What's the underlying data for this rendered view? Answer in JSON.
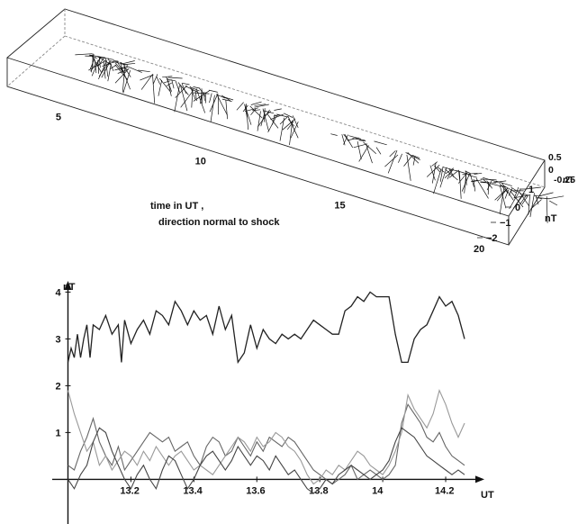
{
  "chart_data": [
    {
      "type": "line",
      "subtype": "3d-vector-field",
      "annotation_lines": [
        "time in UT ,",
        "direction normal to shock"
      ],
      "x_ticks": [
        "5",
        "10",
        "15",
        "20"
      ],
      "y_ticks": [
        "1",
        "0",
        "−1",
        "−2"
      ],
      "y_label": "nT",
      "z_ticks": [
        "0.5",
        "0",
        "-0.25"
      ],
      "z_label": "nT",
      "xlim": [
        3,
        21
      ],
      "ylim": [
        -2,
        1.5
      ],
      "zlim": [
        -0.5,
        0.5
      ],
      "vector_clusters": [
        {
          "t_start": 4.0,
          "t_end": 5.5,
          "density": "very high"
        },
        {
          "t_start": 6.2,
          "t_end": 9.0,
          "density": "high"
        },
        {
          "t_start": 9.5,
          "t_end": 11.5,
          "density": "high"
        },
        {
          "t_start": 13.0,
          "t_end": 14.3,
          "density": "medium"
        },
        {
          "t_start": 15.0,
          "t_end": 15.8,
          "density": "medium"
        },
        {
          "t_start": 16.3,
          "t_end": 20.5,
          "density": "high"
        }
      ]
    },
    {
      "type": "line",
      "y_unit_label": "nT",
      "x_unit_label": "UT",
      "x_ticks": [
        "13.2",
        "13.4",
        "13.6",
        "13.8",
        "14",
        "14.2"
      ],
      "y_ticks": [
        "1",
        "2",
        "3",
        "4"
      ],
      "xlim": [
        12.95,
        14.3
      ],
      "ylim": [
        -0.3,
        4.2
      ],
      "series": [
        {
          "color": "#222222",
          "x": [
            13.0,
            13.01,
            13.02,
            13.03,
            13.04,
            13.05,
            13.06,
            13.07,
            13.08,
            13.1,
            13.12,
            13.14,
            13.16,
            13.17,
            13.18,
            13.2,
            13.22,
            13.24,
            13.26,
            13.28,
            13.3,
            13.32,
            13.34,
            13.36,
            13.38,
            13.4,
            13.42,
            13.44,
            13.46,
            13.48,
            13.5,
            13.52,
            13.54,
            13.56,
            13.58,
            13.6,
            13.62,
            13.64,
            13.66,
            13.68,
            13.7,
            13.72,
            13.74,
            13.76,
            13.78,
            13.8,
            13.82,
            13.84,
            13.86,
            13.88,
            13.9,
            13.92,
            13.94,
            13.96,
            13.98,
            14.0,
            14.02,
            14.04,
            14.06,
            14.08,
            14.1,
            14.12,
            14.14,
            14.16,
            14.18,
            14.2,
            14.22,
            14.24,
            14.26
          ],
          "values": [
            2.5,
            2.8,
            2.6,
            3.1,
            2.6,
            3.0,
            3.3,
            2.6,
            3.3,
            3.2,
            3.5,
            3.1,
            3.3,
            2.5,
            3.4,
            2.9,
            3.2,
            3.4,
            3.1,
            3.6,
            3.5,
            3.3,
            3.8,
            3.6,
            3.3,
            3.6,
            3.4,
            3.5,
            3.1,
            3.7,
            3.2,
            3.5,
            2.5,
            2.7,
            3.3,
            2.8,
            3.2,
            3.0,
            2.9,
            3.1,
            3.0,
            3.1,
            3.0,
            3.2,
            3.4,
            3.3,
            3.2,
            3.1,
            3.1,
            3.6,
            3.7,
            3.9,
            3.8,
            4.0,
            3.9,
            3.9,
            3.9,
            3.1,
            2.5,
            2.5,
            3.0,
            3.2,
            3.3,
            3.6,
            3.9,
            3.7,
            3.8,
            3.5,
            3.0
          ]
        },
        {
          "color": "#666666",
          "x": [
            13.0,
            13.02,
            13.04,
            13.06,
            13.08,
            13.1,
            13.12,
            13.14,
            13.16,
            13.18,
            13.2,
            13.22,
            13.24,
            13.26,
            13.28,
            13.3,
            13.32,
            13.34,
            13.36,
            13.38,
            13.4,
            13.42,
            13.44,
            13.46,
            13.48,
            13.5,
            13.52,
            13.54,
            13.56,
            13.58,
            13.6,
            13.62,
            13.64,
            13.66,
            13.68,
            13.7,
            13.72,
            13.74,
            13.76,
            13.78,
            13.8,
            13.82,
            13.84,
            13.86,
            13.88,
            13.9,
            13.92,
            13.94,
            13.96,
            13.98,
            14.0,
            14.02,
            14.04,
            14.06,
            14.08,
            14.1,
            14.12,
            14.14,
            14.16,
            14.18,
            14.2,
            14.22,
            14.24,
            14.26
          ],
          "values": [
            0.3,
            0.2,
            0.6,
            0.9,
            1.3,
            0.8,
            0.5,
            0.3,
            0.7,
            0.2,
            0.4,
            0.6,
            0.8,
            1.0,
            0.9,
            0.8,
            0.9,
            0.6,
            0.7,
            0.8,
            0.5,
            0.3,
            0.7,
            0.9,
            0.8,
            0.5,
            0.6,
            0.9,
            0.7,
            0.5,
            0.8,
            0.6,
            0.9,
            0.8,
            0.7,
            0.9,
            0.8,
            0.6,
            0.4,
            0.2,
            0.1,
            0.0,
            -0.1,
            0.0,
            0.1,
            0.3,
            0.0,
            0.1,
            0.2,
            0.1,
            0.0,
            0.1,
            0.3,
            1.2,
            1.6,
            1.4,
            1.2,
            0.9,
            0.8,
            1.0,
            0.7,
            0.5,
            0.4,
            0.3
          ]
        },
        {
          "color": "#999999",
          "x": [
            13.0,
            13.02,
            13.04,
            13.06,
            13.08,
            13.1,
            13.12,
            13.14,
            13.16,
            13.18,
            13.2,
            13.22,
            13.24,
            13.26,
            13.28,
            13.3,
            13.32,
            13.34,
            13.36,
            13.38,
            13.4,
            13.42,
            13.44,
            13.46,
            13.48,
            13.5,
            13.52,
            13.54,
            13.56,
            13.58,
            13.6,
            13.62,
            13.64,
            13.66,
            13.68,
            13.7,
            13.72,
            13.74,
            13.76,
            13.78,
            13.8,
            13.82,
            13.84,
            13.86,
            13.88,
            13.9,
            13.92,
            13.94,
            13.96,
            13.98,
            14.0,
            14.02,
            14.04,
            14.06,
            14.08,
            14.1,
            14.12,
            14.14,
            14.16,
            14.18,
            14.2,
            14.22,
            14.24,
            14.26
          ],
          "values": [
            1.9,
            1.4,
            1.0,
            0.6,
            0.8,
            0.3,
            0.5,
            0.2,
            0.4,
            0.6,
            0.5,
            0.3,
            0.6,
            0.4,
            0.7,
            0.5,
            0.3,
            0.5,
            0.6,
            0.4,
            0.2,
            0.3,
            0.2,
            0.1,
            0.3,
            0.5,
            0.7,
            0.9,
            0.8,
            0.6,
            0.9,
            0.7,
            0.8,
            1.0,
            0.9,
            0.7,
            0.6,
            0.4,
            0.1,
            -0.1,
            0.0,
            0.2,
            0.1,
            0.3,
            0.2,
            0.4,
            0.6,
            0.5,
            0.3,
            0.2,
            0.1,
            0.3,
            0.6,
            1.0,
            1.8,
            1.5,
            1.3,
            1.1,
            1.4,
            1.9,
            1.6,
            1.2,
            0.9,
            1.2
          ]
        },
        {
          "color": "#444444",
          "x": [
            13.0,
            13.02,
            13.04,
            13.06,
            13.08,
            13.1,
            13.12,
            13.14,
            13.16,
            13.18,
            13.2,
            13.22,
            13.24,
            13.26,
            13.28,
            13.3,
            13.32,
            13.34,
            13.36,
            13.38,
            13.4,
            13.42,
            13.44,
            13.46,
            13.48,
            13.5,
            13.52,
            13.54,
            13.56,
            13.58,
            13.6,
            13.62,
            13.64,
            13.66,
            13.68,
            13.7,
            13.72,
            13.74,
            13.76,
            13.78,
            13.8,
            13.82,
            13.84,
            13.86,
            13.88,
            13.9,
            13.92,
            13.94,
            13.96,
            13.98,
            14.0,
            14.02,
            14.04,
            14.06,
            14.08,
            14.1,
            14.12,
            14.14,
            14.16,
            14.18,
            14.2,
            14.22,
            14.24,
            14.26
          ],
          "values": [
            0.0,
            -0.2,
            0.1,
            0.3,
            0.8,
            1.1,
            1.0,
            0.6,
            0.3,
            0.0,
            -0.2,
            0.1,
            0.3,
            0.0,
            -0.2,
            0.2,
            0.5,
            0.4,
            0.1,
            -0.2,
            0.0,
            0.3,
            0.5,
            0.6,
            0.4,
            0.2,
            0.4,
            0.7,
            0.5,
            0.3,
            0.5,
            0.4,
            0.2,
            0.5,
            0.3,
            0.1,
            0.2,
            0.0,
            -0.2,
            -0.3,
            -0.2,
            0.0,
            -0.1,
            0.1,
            0.2,
            0.3,
            0.2,
            0.1,
            0.0,
            0.1,
            0.2,
            0.4,
            0.8,
            1.1,
            1.0,
            0.9,
            0.7,
            0.5,
            0.4,
            0.3,
            0.2,
            0.1,
            0.2,
            0.1
          ]
        }
      ]
    }
  ]
}
